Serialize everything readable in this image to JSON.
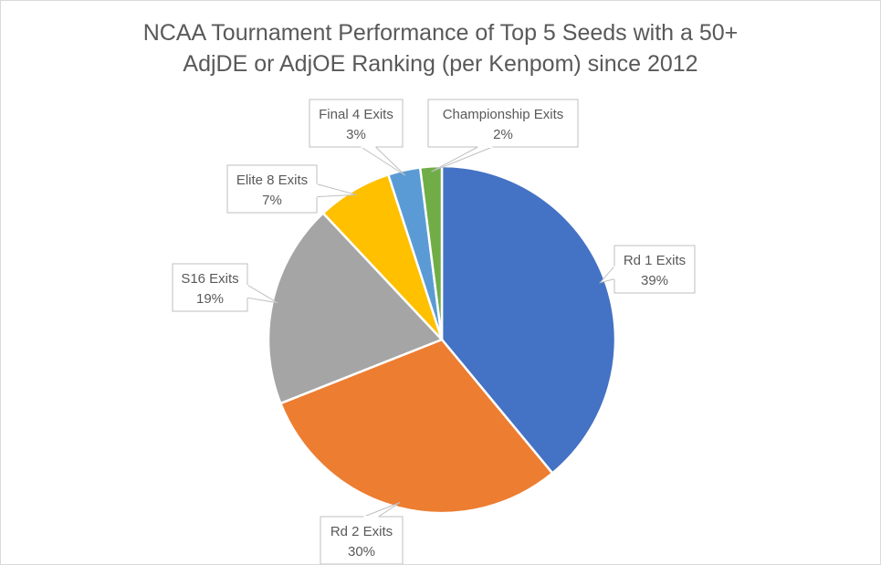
{
  "chart_data": {
    "type": "pie",
    "title": "NCAA Tournament Performance of Top 5 Seeds with a 50+ AdjDE or AdjOE Ranking (per Kenpom) since 2012",
    "title_lines": [
      "NCAA Tournament Performance of Top 5 Seeds with a 50+",
      "AdjDE or AdjOE Ranking (per Kenpom) since 2012"
    ],
    "slices": [
      {
        "label": "Rd 1 Exits",
        "value": 39,
        "value_label": "39%",
        "color": "#4472C4"
      },
      {
        "label": "Rd 2 Exits",
        "value": 30,
        "value_label": "30%",
        "color": "#ED7D31"
      },
      {
        "label": "S16 Exits",
        "value": 19,
        "value_label": "19%",
        "color": "#A5A5A5"
      },
      {
        "label": "Elite 8 Exits",
        "value": 7,
        "value_label": "7%",
        "color": "#FFC000"
      },
      {
        "label": "Final 4 Exits",
        "value": 3,
        "value_label": "3%",
        "color": "#5B9BD5"
      },
      {
        "label": "Championship Exits",
        "value": 2,
        "value_label": "2%",
        "color": "#70AD47"
      }
    ],
    "start_angle": "12 o'clock",
    "direction": "clockwise",
    "data_labels": "callouts",
    "legend": "none"
  }
}
